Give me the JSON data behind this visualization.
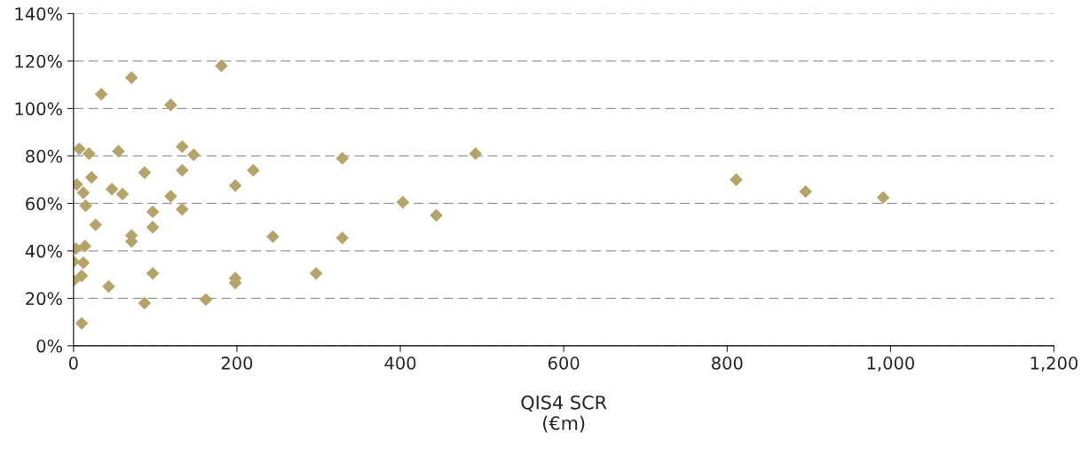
{
  "chart_data": {
    "type": "scatter",
    "xlabel": "QIS4 SCR\n(€m)",
    "x": [
      181,
      71,
      34,
      119,
      7,
      55,
      133,
      19,
      147,
      329,
      492,
      22,
      87,
      133,
      220,
      4,
      47,
      60,
      12,
      119,
      15,
      198,
      27,
      97,
      97,
      71,
      71,
      133,
      403,
      444,
      244,
      329,
      3,
      14,
      0,
      12,
      0,
      10,
      97,
      43,
      198,
      198,
      297,
      87,
      162,
      10,
      811,
      896,
      991
    ],
    "series": [
      {
        "color": "#b5a46a",
        "values": [
          118,
          113,
          106,
          101.5,
          83,
          82,
          84,
          81,
          80.5,
          79,
          81,
          71,
          73,
          74,
          74,
          68,
          66,
          64,
          64.5,
          63,
          59,
          67.5,
          51,
          56.5,
          50,
          46.5,
          44,
          57.5,
          60.5,
          55,
          46,
          45.5,
          41,
          42,
          35.5,
          35,
          27.5,
          29.5,
          30.5,
          25,
          28.5,
          26.5,
          30.5,
          18,
          19.5,
          9.5,
          70,
          65,
          62.5
        ]
      }
    ],
    "xlim": [
      0,
      1200
    ],
    "xticks": [
      0,
      200,
      400,
      600,
      800,
      {
        "value": 1000,
        "label": "1,000"
      },
      {
        "value": 1200,
        "label": "1,200"
      }
    ],
    "ylim": [
      0,
      140
    ],
    "yticks": [
      {
        "value": 0,
        "label": "0%"
      },
      {
        "value": 20,
        "label": "20%"
      },
      {
        "value": 40,
        "label": "40%"
      },
      {
        "value": 60,
        "label": "60%"
      },
      {
        "value": 80,
        "label": "80%"
      },
      {
        "value": 100,
        "label": "100%"
      },
      {
        "value": 120,
        "label": "120%"
      },
      {
        "value": 140,
        "label": "140%"
      }
    ],
    "grid": "y",
    "marker": "diamond",
    "legend": false
  }
}
